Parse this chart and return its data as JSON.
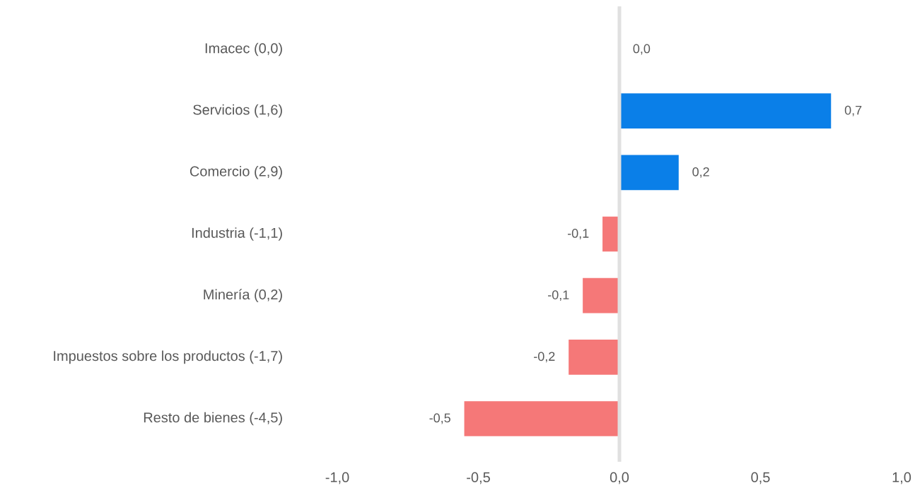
{
  "chart_data": {
    "type": "bar",
    "orientation": "horizontal",
    "categories": [
      "Imacec (0,0)",
      "Servicios (1,6)",
      "Comercio (2,9)",
      "Industria (-1,1)",
      "Minería (0,2)",
      "Impuestos sobre los productos (-1,7)",
      "Resto de bienes (-4,5)"
    ],
    "values": [
      0,
      0.75,
      0.21,
      -0.06,
      -0.13,
      -0.18,
      -0.55
    ],
    "value_labels": [
      "0,0",
      "0,7",
      "0,2",
      "-0,1",
      "-0,1",
      "-0,2",
      "-0,5"
    ],
    "colors": [
      "#0a7fe8",
      "#0a7fe8",
      "#0a7fe8",
      "#f57878",
      "#f57878",
      "#f57878",
      "#f57878"
    ],
    "xlim": [
      -1,
      1
    ],
    "xticks": [
      {
        "value": -1,
        "label": "-1,0"
      },
      {
        "value": -0.5,
        "label": "-0,5"
      },
      {
        "value": 0,
        "label": "0,0"
      },
      {
        "value": 0.5,
        "label": "0,5"
      },
      {
        "value": 1,
        "label": "1,0"
      }
    ]
  }
}
